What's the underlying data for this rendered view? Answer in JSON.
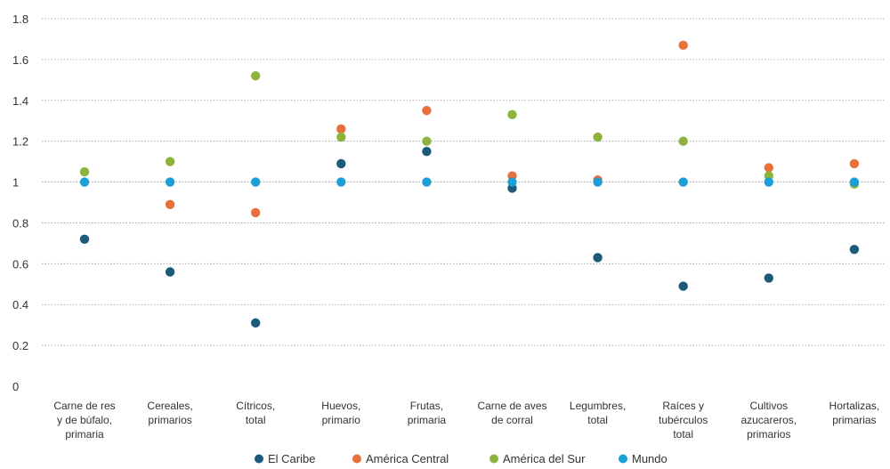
{
  "chart_data": {
    "type": "scatter",
    "title": "",
    "xlabel": "",
    "ylabel": "",
    "ylim": [
      0,
      1.8
    ],
    "yticks": [
      {
        "value": 0,
        "label": "0"
      },
      {
        "value": 0.2,
        "label": "0.2"
      },
      {
        "value": 0.4,
        "label": "0.4"
      },
      {
        "value": 0.6,
        "label": "0.6"
      },
      {
        "value": 0.8,
        "label": "0.8"
      },
      {
        "value": 1.0,
        "label": "1"
      },
      {
        "value": 1.2,
        "label": "1.2"
      },
      {
        "value": 1.4,
        "label": "1.4"
      },
      {
        "value": 1.6,
        "label": "1.6"
      },
      {
        "value": 1.8,
        "label": "1.8"
      }
    ],
    "grid": true,
    "legend_position": "bottom",
    "categories": [
      [
        "Carne de res",
        "y de búfalo,",
        "primaria"
      ],
      [
        "Cereales,",
        "primarios"
      ],
      [
        "Cítricos,",
        "total"
      ],
      [
        "Huevos,",
        "primario"
      ],
      [
        "Frutas,",
        "primaria"
      ],
      [
        "Carne de aves",
        "de corral"
      ],
      [
        "Legumbres,",
        "total"
      ],
      [
        "Raíces y",
        "tubérculos",
        "total"
      ],
      [
        "Cultivos",
        "azucareros,",
        "primarios"
      ],
      [
        "Hortalizas,",
        "primarias"
      ]
    ],
    "series": [
      {
        "name": "El Caribe",
        "color": "#1b5a7a",
        "values": [
          0.72,
          0.56,
          0.31,
          1.09,
          1.15,
          0.97,
          0.63,
          0.49,
          0.53,
          0.67
        ]
      },
      {
        "name": "América Central",
        "color": "#e8703a",
        "values": [
          null,
          0.89,
          0.85,
          1.26,
          1.35,
          1.03,
          1.01,
          1.67,
          1.07,
          1.09
        ]
      },
      {
        "name": "América del Sur",
        "color": "#8cb43d",
        "values": [
          1.05,
          1.1,
          1.52,
          1.22,
          1.2,
          1.33,
          1.22,
          1.2,
          1.03,
          0.99
        ]
      },
      {
        "name": "Mundo",
        "color": "#1a9fd7",
        "values": [
          1.0,
          1.0,
          1.0,
          1.0,
          1.0,
          1.0,
          1.0,
          1.0,
          1.0,
          1.0
        ]
      }
    ]
  }
}
